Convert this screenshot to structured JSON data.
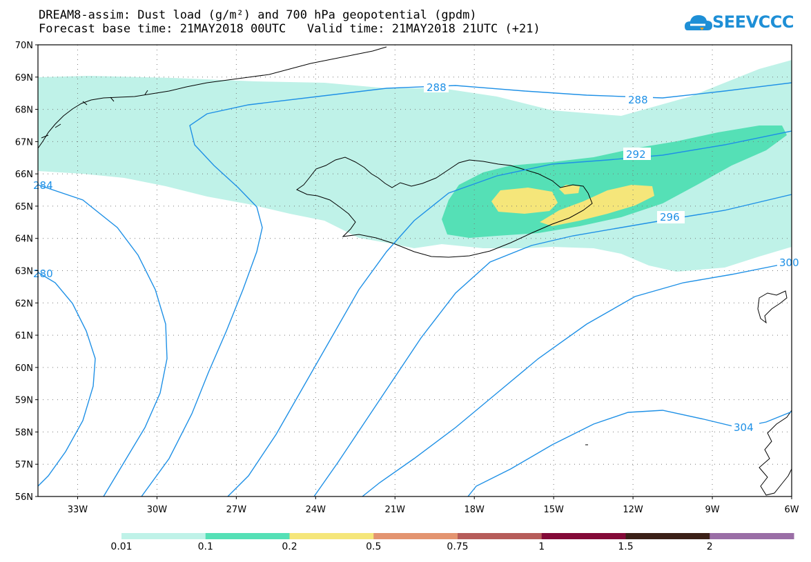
{
  "title_line1": "DREAM8-assim: Dust load (g/m²) and 700 hPa geopotential (gpdm)",
  "title_line2": "Forecast base time: 21MAY2018 00UTC   Valid time: 21MAY2018 21UTC (+21)",
  "logo": {
    "text": "SEEVCCC",
    "icon": "cloud-logo-icon",
    "color": "#1e8fd6"
  },
  "map": {
    "projection": "lat-lon",
    "lat_range": [
      56,
      70
    ],
    "lon_range": [
      -34.5,
      -6
    ],
    "lat_labels": [
      "70N",
      "69N",
      "68N",
      "67N",
      "66N",
      "65N",
      "64N",
      "63N",
      "62N",
      "61N",
      "60N",
      "59N",
      "58N",
      "57N",
      "56N"
    ],
    "lon_labels": [
      "33W",
      "30W",
      "27W",
      "24W",
      "21W",
      "18W",
      "15W",
      "12W",
      "9W",
      "6W"
    ],
    "gridlines": "dotted",
    "contour_color": "#1e90e6",
    "contour_labels": [
      "288",
      "288",
      "292",
      "296",
      "300",
      "304",
      "284",
      "280"
    ]
  },
  "legend": {
    "thresholds": [
      "0.01",
      "0.1",
      "0.2",
      "0.5",
      "0.75",
      "1",
      "1.5",
      "2"
    ],
    "colors": [
      "#bff2e8",
      "#55e0b6",
      "#f5e67a",
      "#e39470",
      "#b65c5a",
      "#830a38",
      "#3b2018",
      "#9a6ea6"
    ]
  }
}
